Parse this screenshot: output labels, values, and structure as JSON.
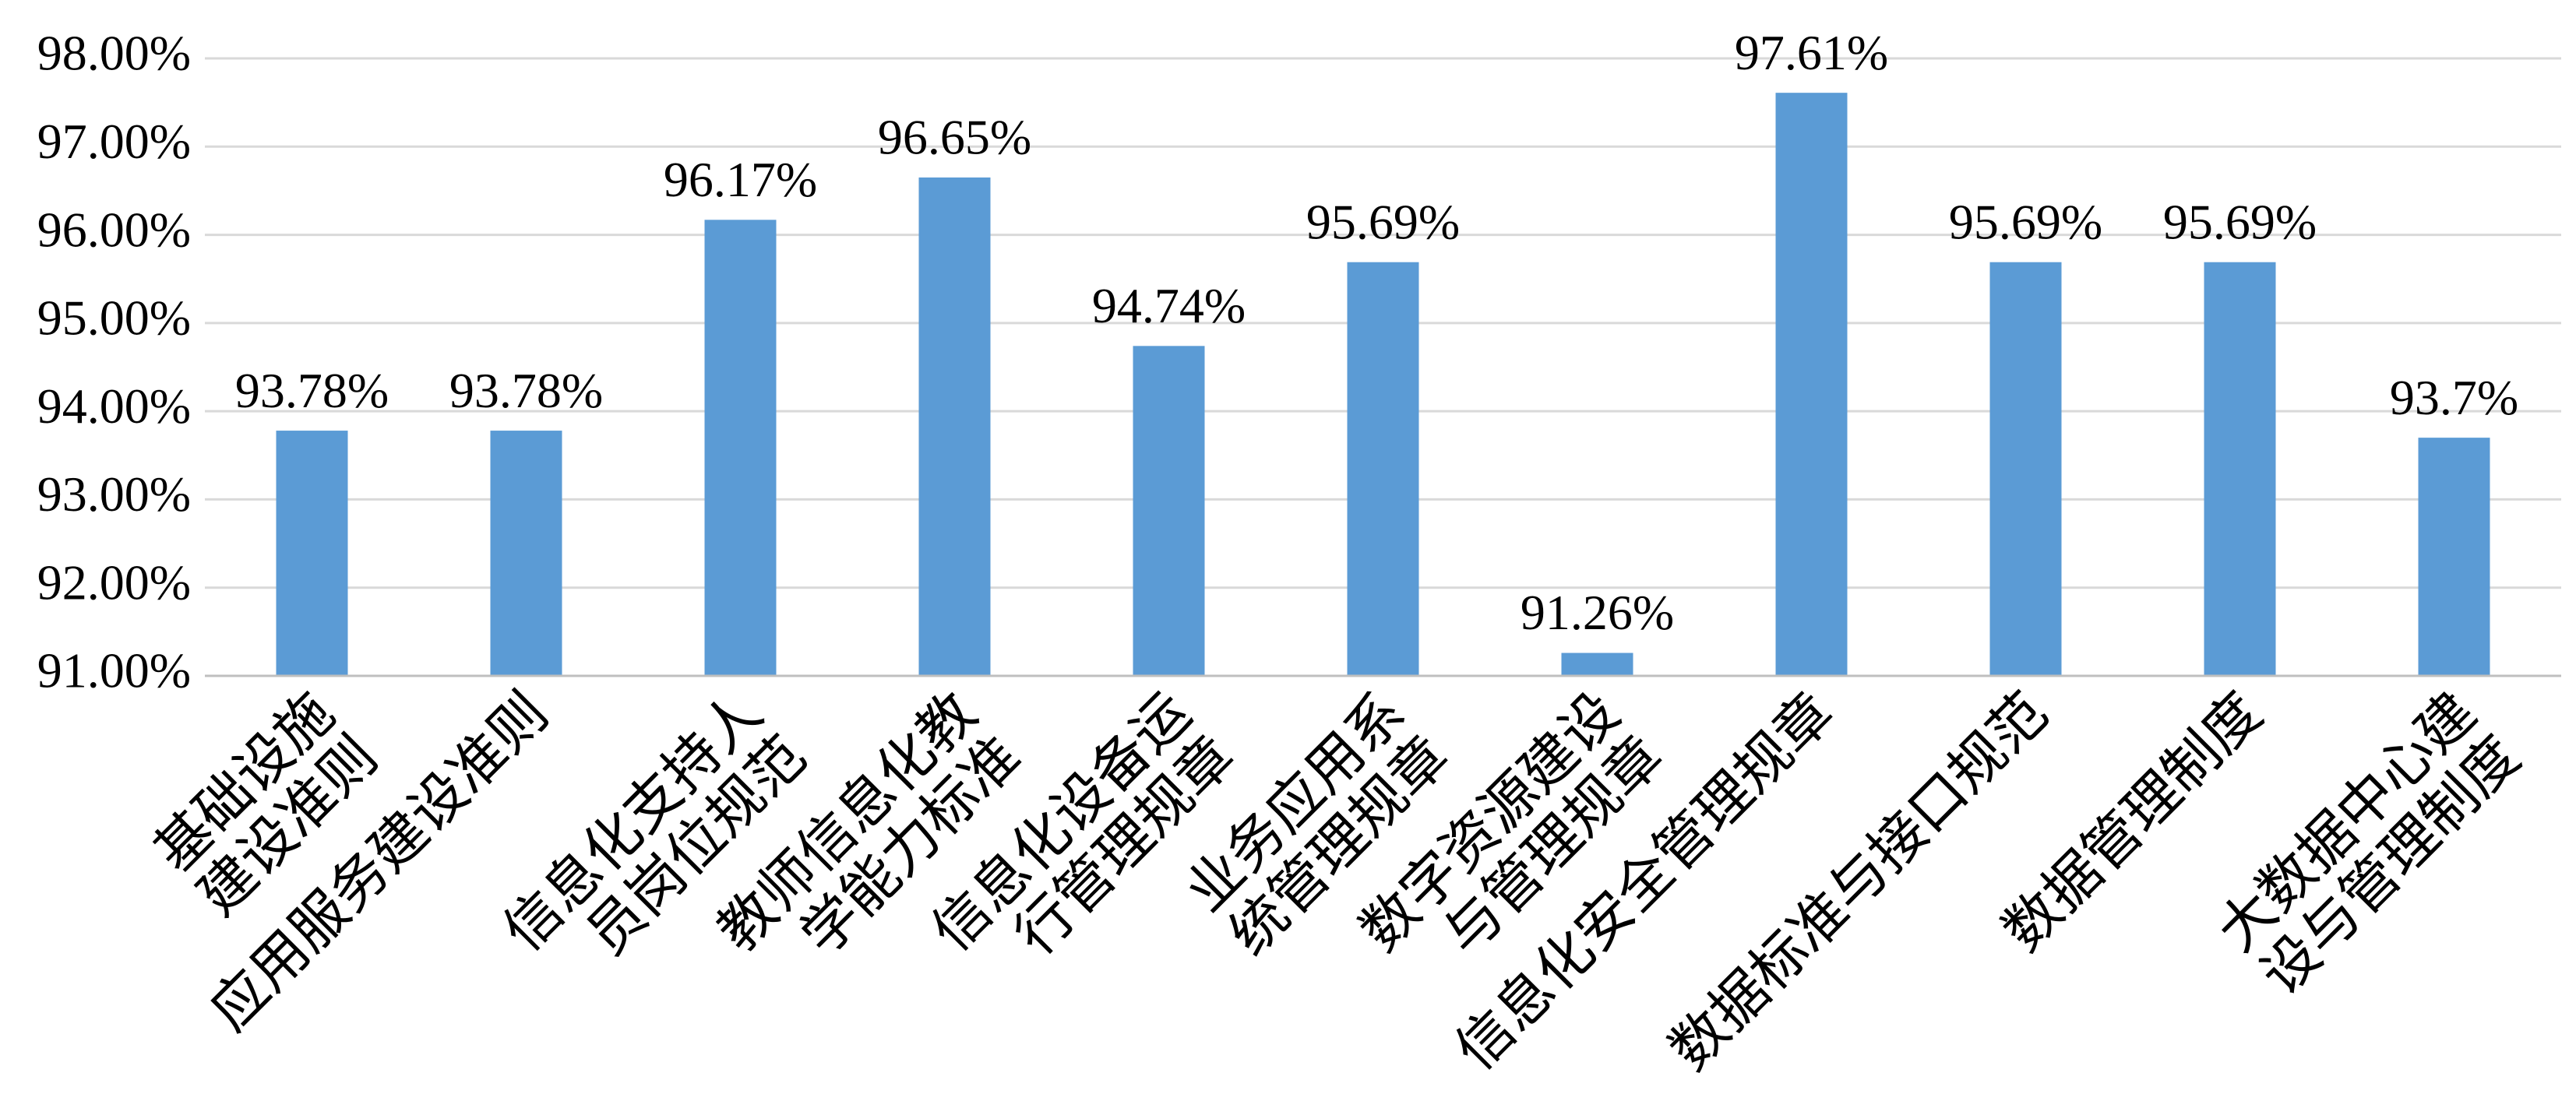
{
  "chart_data": {
    "type": "bar",
    "categories": [
      "基础设施\n建设准则",
      "应用服务建设准则",
      "信息化支持人\n员岗位规范",
      "教师信息化教\n学能力标准",
      "信息化设备运\n行管理规章",
      "业务应用系\n统管理规章",
      "数字资源建设\n与管理规章",
      "信息化安全管理规章",
      "数据标准与接口规范",
      "数据管理制度",
      "大数据中心建\n设与管理制度"
    ],
    "values": [
      93.78,
      93.78,
      96.17,
      96.65,
      94.74,
      95.69,
      91.26,
      97.61,
      95.69,
      95.69,
      93.7
    ],
    "value_labels": [
      "93.78%",
      "93.78%",
      "96.17%",
      "96.65%",
      "94.74%",
      "95.69%",
      "91.26%",
      "97.61%",
      "95.69%",
      "95.69%",
      "93.7%"
    ],
    "color": "#5b9bd5",
    "ylim": [
      91,
      98
    ],
    "yticks": [
      {
        "value": 91,
        "label": "91.00%"
      },
      {
        "value": 92,
        "label": "92.00%"
      },
      {
        "value": 93,
        "label": "93.00%"
      },
      {
        "value": 94,
        "label": "94.00%"
      },
      {
        "value": 95,
        "label": "95.00%"
      },
      {
        "value": 96,
        "label": "96.00%"
      },
      {
        "value": 97,
        "label": "97.00%"
      },
      {
        "value": 98,
        "label": "98.00%"
      }
    ],
    "grid": true
  }
}
